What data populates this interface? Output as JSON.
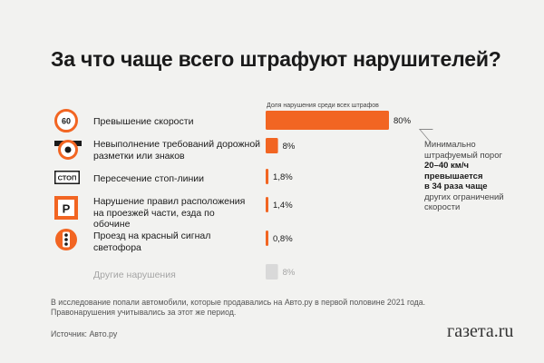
{
  "title": "За что чаще всего штрафуют нарушителей?",
  "chart_data": {
    "type": "bar",
    "orientation": "horizontal",
    "xlabel": "Доля нарушения среди всех штрафов",
    "categories": [
      "Превышение скорости",
      "Невыполнение требований дорожной разметки или знаков",
      "Пересечение стоп-линии",
      "Нарушение правил расположения на проезжей части, езда по обочине",
      "Проезд на красный сигнал светофора",
      "Другие нарушения"
    ],
    "values": [
      80,
      8,
      1.8,
      1.4,
      0.8,
      8
    ],
    "value_labels": [
      "80%",
      "8%",
      "1,8%",
      "1,4%",
      "0,8%",
      "8%"
    ],
    "colors": [
      "#f26522",
      "#f26522",
      "#f26522",
      "#f26522",
      "#f26522",
      "#d9d9d9"
    ],
    "xlim": [
      0,
      80
    ],
    "grid": false
  },
  "icons": [
    "speed-limit-60-sign-icon",
    "road-marking-sign-icon",
    "stop-line-sign-icon",
    "parking-sign-icon",
    "traffic-light-icon"
  ],
  "icon_texts": {
    "speed": "60",
    "stop": "СТОП",
    "parking": "P"
  },
  "note": {
    "line1": "Минимально",
    "line2": "штрафуемый порог",
    "line3": "20–40 км/ч",
    "line4": "превышается",
    "line5": "в 34 раза чаще",
    "line6": "других ограничений",
    "line7": "скорости"
  },
  "footnote": {
    "line1": "В исследование попали автомобили, которые продавались на Авто.ру в первой половине 2021 года.",
    "line2": "Правонарушения учитывались за этот же период."
  },
  "source": "Источник: Авто.ру",
  "logo": "газета.ru"
}
